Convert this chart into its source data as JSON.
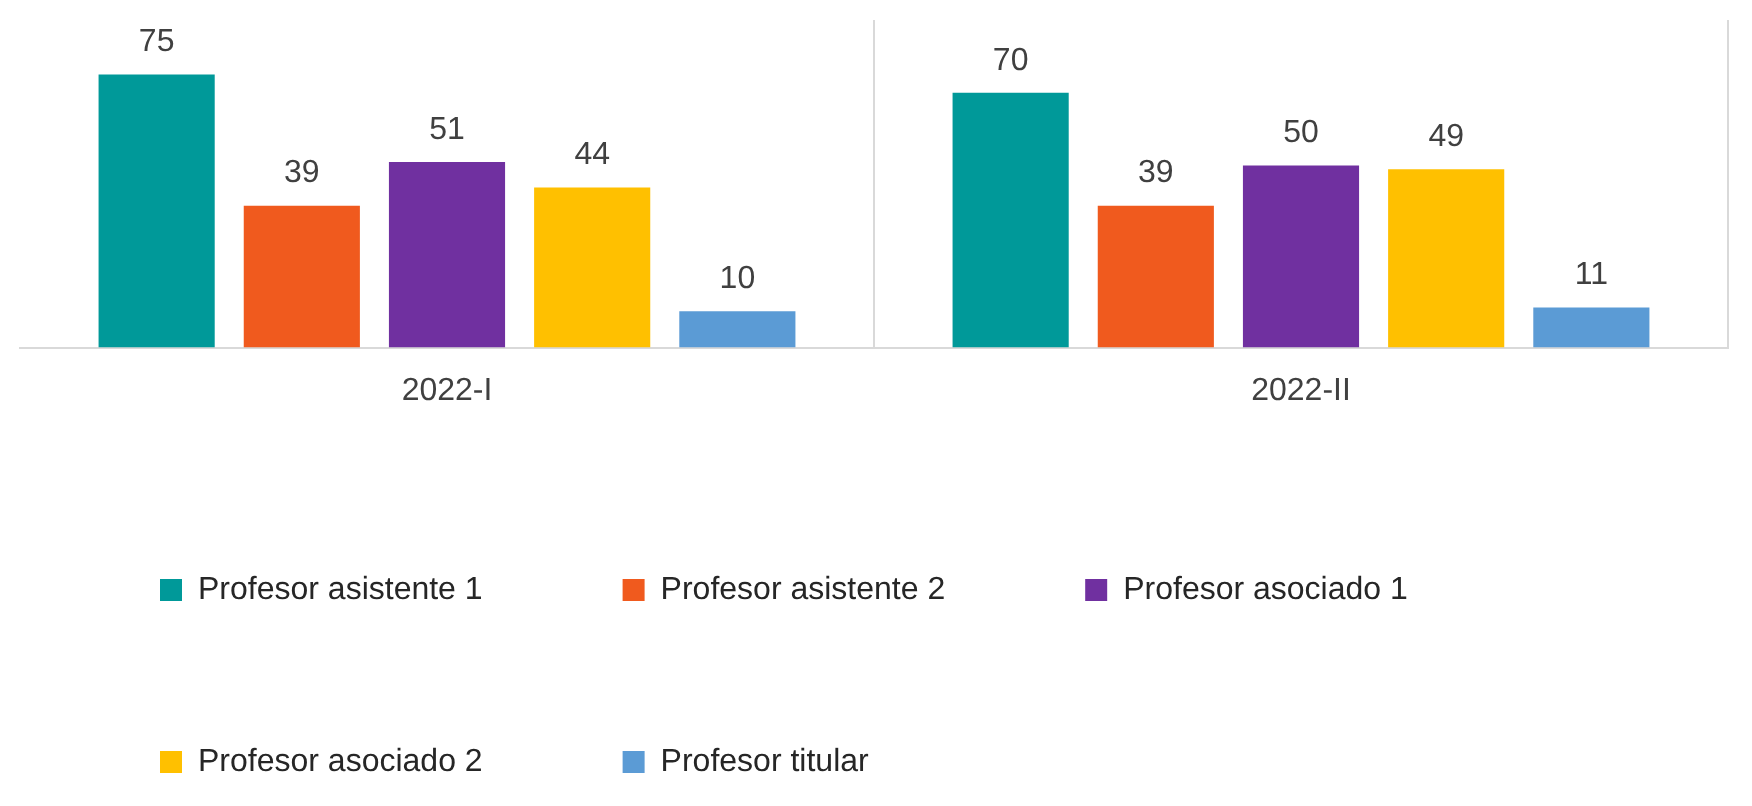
{
  "chart_data": {
    "type": "bar",
    "categories": [
      "2022-I",
      "2022-II"
    ],
    "series": [
      {
        "name": "Profesor asistente 1",
        "color": "#009999",
        "values": [
          75,
          70
        ]
      },
      {
        "name": "Profesor asistente 2",
        "color": "#f05a1e",
        "values": [
          39,
          39
        ]
      },
      {
        "name": "Profesor asociado 1",
        "color": "#7030a0",
        "values": [
          51,
          50
        ]
      },
      {
        "name": "Profesor asociado 2",
        "color": "#ffc000",
        "values": [
          44,
          49
        ]
      },
      {
        "name": "Profesor titular",
        "color": "#5b9bd5",
        "values": [
          10,
          11
        ]
      }
    ],
    "data_labels": true,
    "legend": "bottom",
    "grid": "x",
    "tick_labels": "x"
  }
}
